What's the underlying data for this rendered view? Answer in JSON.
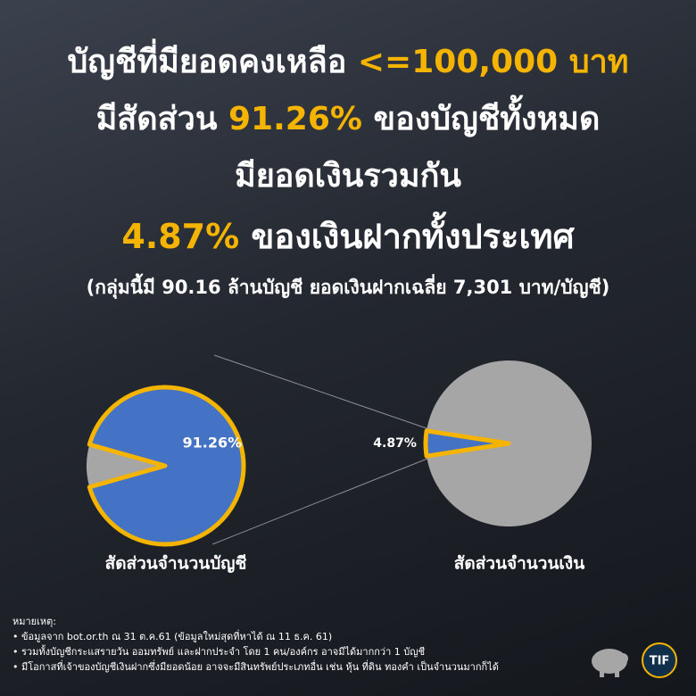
{
  "headline": {
    "lines": [
      [
        {
          "text": "บัญชีที่มียอดคงเหลือ ",
          "highlight": false
        },
        {
          "text": "<=100,000 บาท",
          "highlight": true
        }
      ],
      [
        {
          "text": "มีสัดส่วน ",
          "highlight": false
        },
        {
          "text": "91.26%",
          "highlight": true
        },
        {
          "text": " ของบัญชีทั้งหมด",
          "highlight": false
        }
      ],
      [
        {
          "text": "มียอดเงินรวมกัน",
          "highlight": false
        }
      ],
      [
        {
          "text": "4.87%",
          "highlight": true
        },
        {
          "text": " ของเงินฝากทั้งประเทศ",
          "highlight": false
        }
      ],
      [
        {
          "text": "(กลุ่มนี้มี 90.16 ล้านบัญชี ยอดเงินฝากเฉลี่ย 7,301 บาท/บัญชี)",
          "highlight": false
        }
      ]
    ]
  },
  "chart_data": [
    {
      "type": "pie",
      "title": "สัดส่วนจำนวนบัญชี",
      "values": [
        8.74,
        91.26
      ],
      "value_labels": [
        null,
        "91.26%"
      ],
      "colors": [
        "#a6a6a6",
        "#4472c4"
      ],
      "highlight_color": "#f5b400"
    },
    {
      "type": "pie",
      "title": "สัดส่วนจำนวนเงิน",
      "values": [
        4.87,
        95.13
      ],
      "value_labels": [
        "4.87%",
        null
      ],
      "colors": [
        "#4472c4",
        "#a6a6a6"
      ],
      "highlight_color": "#f5b400"
    }
  ],
  "notes": {
    "title": "หมายเหตุ:",
    "items": [
      "ข้อมูลจาก bot.or.th ณ 31 ต.ค.61 (ข้อมูลใหม่สุดที่หาได้ ณ 11 ธ.ค. 61)",
      "รวมทั้งบัญชีกระแสรายวัน ออมทรัพย์ และฝากประจำ โดย 1 คน/องค์กร อาจมีได้มากกว่า 1 บัญชี",
      "มีโอกาสที่เจ้าของบัญชีเงินฝากซึ่งมียอดน้อย อาจจะมีสินทรัพย์ประเภทอื่น เช่น หุ้น ที่ดิน ทองคำ เป็นจำนวนมากก็ได้"
    ]
  },
  "logo": "TIF"
}
